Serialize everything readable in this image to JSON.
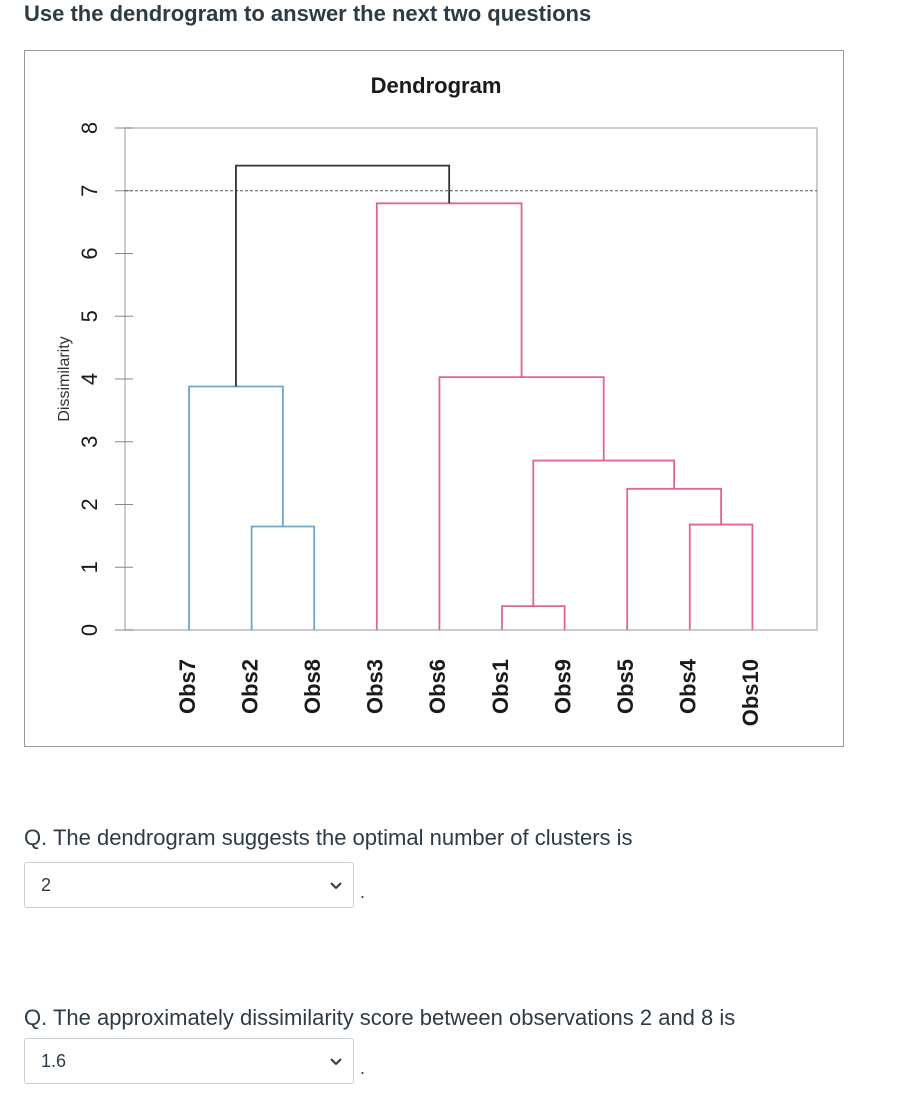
{
  "heading": "Use the dendrogram to answer the next two questions",
  "chart_data": {
    "type": "dendrogram",
    "title": "Dendrogram",
    "ylabel": "Dissimilarity",
    "ylim": [
      0,
      8
    ],
    "yticks": [
      "0",
      "1",
      "2",
      "3",
      "4",
      "5",
      "6",
      "7",
      "8"
    ],
    "leaves": [
      "Obs7",
      "Obs2",
      "Obs8",
      "Obs3",
      "Obs6",
      "Obs1",
      "Obs9",
      "Obs5",
      "Obs4",
      "Obs10"
    ],
    "cut_line": 7.0,
    "colors": {
      "cluster_1": "#6ea6c8",
      "cluster_2": "#e0668e",
      "root": "#333333",
      "axis": "#bbbbbb",
      "cut": "#555555"
    },
    "merges": [
      {
        "left": "Obs1",
        "right": "Obs9",
        "height": 0.38,
        "color": "cluster_2"
      },
      {
        "left": "Obs2",
        "right": "Obs8",
        "height": 1.65,
        "color": "cluster_1"
      },
      {
        "left": "Obs4",
        "right": "Obs10",
        "height": 1.68,
        "color": "cluster_2"
      },
      {
        "left": "Obs5",
        "right": "[Obs4,Obs10]",
        "height": 2.25,
        "color": "cluster_2"
      },
      {
        "left": "[Obs1,Obs9]",
        "right": "[Obs5,Obs4,Obs10]",
        "height": 2.7,
        "color": "cluster_2"
      },
      {
        "left": "Obs7",
        "right": "[Obs2,Obs8]",
        "height": 3.88,
        "color": "cluster_1"
      },
      {
        "left": "Obs6",
        "right": "[Obs1,Obs9,Obs5,Obs4,Obs10]",
        "height": 4.03,
        "color": "cluster_2"
      },
      {
        "left": "Obs3",
        "right": "[Obs6,...]",
        "height": 6.8,
        "color": "cluster_2"
      },
      {
        "left": "[Obs7,Obs2,Obs8]",
        "right": "[Obs3,...]",
        "height": 7.4,
        "color": "root"
      }
    ]
  },
  "questions": [
    {
      "text": "Q. The dendrogram suggests the optimal number of clusters is",
      "selected": "2",
      "suffix": "."
    },
    {
      "text": "Q. The approximately dissimilarity score between observations 2 and 8 is",
      "selected": "1.6",
      "suffix": "."
    }
  ]
}
